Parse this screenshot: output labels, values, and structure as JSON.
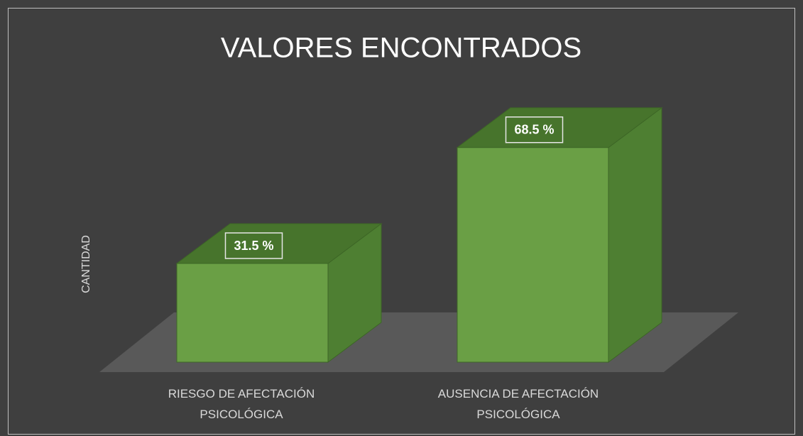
{
  "chart_data": {
    "type": "bar3d",
    "title": "VALORES ENCONTRADOS",
    "y_label": "CANTIDAD",
    "categories": [
      "RIESGO DE AFECTACIÓN PSICOLÓGICA",
      "AUSENCIA DE AFECTACIÓN PSICOLÓGICA"
    ],
    "values": [
      31.5,
      68.5
    ],
    "value_labels": [
      "31.5 %",
      "68.5 %"
    ],
    "color": "#6a9f45",
    "ylim": [
      0,
      80
    ]
  }
}
